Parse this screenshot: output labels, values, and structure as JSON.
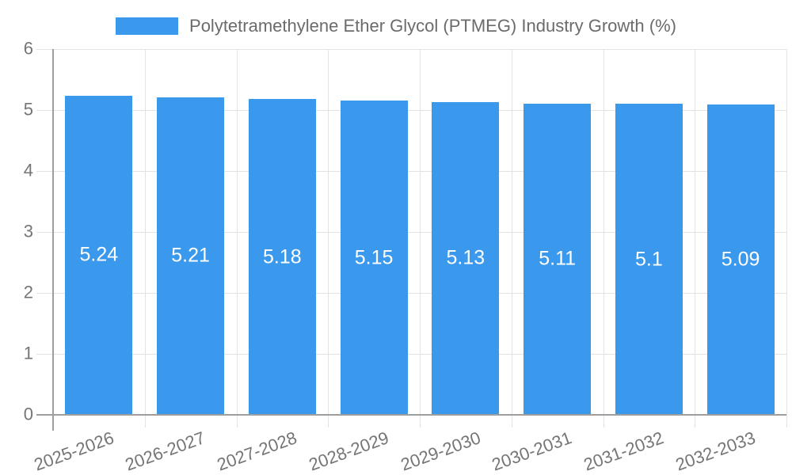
{
  "chart_data": {
    "type": "bar",
    "title": "Polytetramethylene Ether Glycol (PTMEG) Industry Growth (%)",
    "categories": [
      "2025-2026",
      "2026-2027",
      "2027-2028",
      "2028-2029",
      "2029-2030",
      "2030-2031",
      "2031-2032",
      "2032-2033"
    ],
    "values": [
      5.24,
      5.21,
      5.18,
      5.15,
      5.13,
      5.11,
      5.1,
      5.09
    ],
    "xlabel": "",
    "ylabel": "",
    "ylim": [
      0,
      6
    ],
    "yticks": [
      0,
      1,
      2,
      3,
      4,
      5,
      6
    ],
    "grid": true,
    "legend_position": "top",
    "x_tick_rotation_deg": -20,
    "bar_color": "#3a99ec",
    "value_label_color": "#ffffff",
    "grid_color": "#e3e3e3",
    "axis_color": "#9e9e9e",
    "tick_label_color": "#757575",
    "legend_text_color": "#6b6b6b",
    "background_color": "#ffffff"
  }
}
